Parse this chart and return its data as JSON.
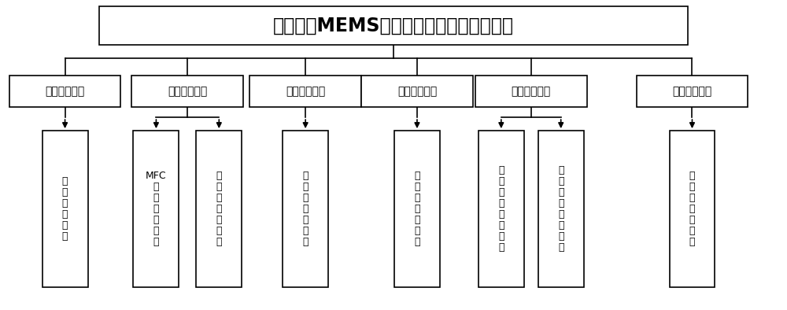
{
  "title": "一种用于MEMS传感器的评测系统硬件设计",
  "level1_nodes": [
    "气体供应模块",
    "气体控制模块",
    "气体清洗模块",
    "气体混合模块",
    "气体测试模块",
    "气体处理模块"
  ],
  "l2_texts": [
    "气\n罐\n供\n应\n气\n体",
    "MFC\n控\n制\n气\n体\n流\n量",
    "电\n磁\n阀\n控\n制\n气\n路",
    "洗\n气\n瓶\n控\n制\n温\n度",
    "混\n气\n室\n混\n合\n气\n体",
    "信\n号\n测\n量\n数\n据\n采\n集",
    "上\n位\n机\n控\n制\n及\n分\n析",
    "洗\n气\n瓶\n吸\n收\n废\n气"
  ],
  "bg_color": "#ffffff",
  "box_edge_color": "#000000",
  "text_color": "#000000",
  "line_color": "#000000"
}
